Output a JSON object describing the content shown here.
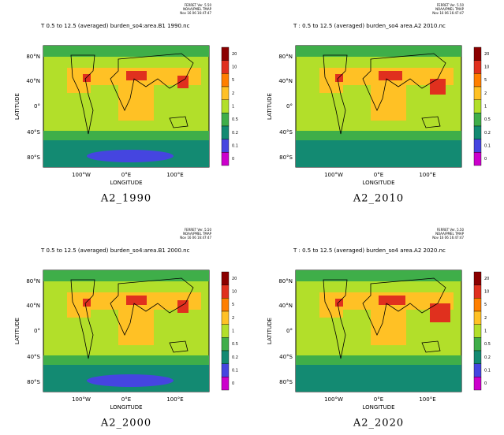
{
  "ferret": {
    "line1": "FERRET Ver. 5.50",
    "line2": "NOAA/PMEL TMAP",
    "line3": "Nov 16 06 16:47:47"
  },
  "axes": {
    "y_label": "LATITUDE",
    "x_label": "LONGITUDE",
    "y_ticks": [
      "80°N",
      "40°N",
      "0°",
      "40°S",
      "80°S"
    ],
    "x_ticks": [
      "100°W",
      "0°E",
      "100°E"
    ]
  },
  "colorbar": {
    "labels": [
      "20",
      "10",
      "5",
      "2",
      "1",
      "0.5",
      "0.2",
      "0.1",
      "0"
    ]
  },
  "panels": [
    {
      "title": "T   0.5 to 12.5 (averaged) burden_so4:area.B1 1990.nc",
      "caption": "A2_1990"
    },
    {
      "title": "T : 0.5 to 12.5 (averaged) burden_so4 area.A2 2010.nc",
      "caption": "A2_2010"
    },
    {
      "title": "T   0.5 to 12.5 (averaged) burden_so4:area.B1 2000.nc",
      "caption": "A2_2000"
    },
    {
      "title": "T : 0.5 to 12.5 (averaged) burden_so4 area.A2 2020.nc",
      "caption": "A2_2020"
    }
  ]
}
